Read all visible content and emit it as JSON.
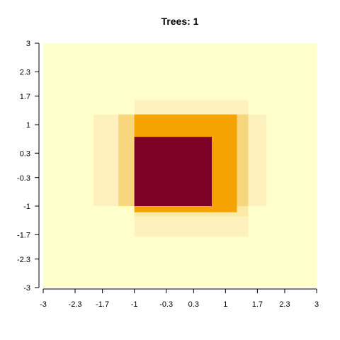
{
  "chart_data": {
    "type": "heatmap",
    "title": "Trees: 1",
    "xlabel": "",
    "ylabel": "",
    "xlim": [
      -3,
      3
    ],
    "ylim": [
      -3,
      3
    ],
    "x_ticks": [
      -3,
      -2.3,
      -1.7,
      -1,
      -0.3,
      0.3,
      1,
      1.7,
      2.3,
      3
    ],
    "x_tick_labels": [
      "-3",
      "-2.3",
      "-1.7",
      "-1",
      "-0.3",
      "0.3",
      "1",
      "1.7",
      "2.3",
      "3"
    ],
    "y_ticks": [
      3,
      2.3,
      1.7,
      1,
      0.3,
      -0.3,
      -1,
      -1.7,
      -2.3,
      -3
    ],
    "y_tick_labels": [
      "3",
      "2.3",
      "1.7",
      "1",
      "0.3",
      "-0.3",
      "-1",
      "-1.7",
      "-2.3",
      "-3"
    ],
    "grid": false,
    "background_color": "#FFFFCC",
    "regions": [
      {
        "x": [
          -1.9,
          1.9
        ],
        "y": [
          -1.0,
          1.25
        ],
        "color": "#FFF1BE"
      },
      {
        "x": [
          -1.0,
          1.5
        ],
        "y": [
          -1.75,
          1.6
        ],
        "color": "#FFF1BE"
      },
      {
        "x": [
          -1.0,
          1.5
        ],
        "y": [
          -1.25,
          -1.0
        ],
        "color": "#FDE9A6"
      },
      {
        "x": [
          -1.35,
          1.5
        ],
        "y": [
          -1.0,
          1.25
        ],
        "color": "#F8D67E"
      },
      {
        "x": [
          -1.0,
          1.25
        ],
        "y": [
          -1.15,
          1.25
        ],
        "color": "#F5A300"
      },
      {
        "x": [
          -1.0,
          0.7
        ],
        "y": [
          -1.0,
          0.7
        ],
        "color": "#7D0025"
      }
    ]
  }
}
